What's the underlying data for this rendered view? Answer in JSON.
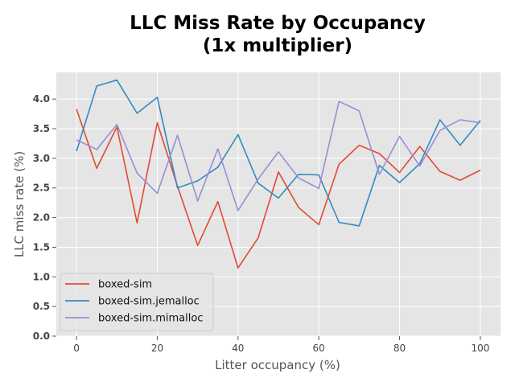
{
  "chart_data": {
    "type": "line",
    "title_line1": "LLC Miss Rate by Occupancy",
    "title_line2": "(1x multiplier)",
    "xlabel": "Litter occupancy (%)",
    "ylabel": "LLC miss rate (%)",
    "xlim": [
      -5,
      105
    ],
    "ylim": [
      0,
      4.45
    ],
    "xticks": [
      0,
      20,
      40,
      60,
      80,
      100
    ],
    "yticks": [
      0.0,
      0.5,
      1.0,
      1.5,
      2.0,
      2.5,
      3.0,
      3.5,
      4.0
    ],
    "ytick_labels": [
      "0.0",
      "0.5",
      "1.0",
      "1.5",
      "2.0",
      "2.5",
      "3.0",
      "3.5",
      "4.0"
    ],
    "grid": true,
    "legend_position": "lower-left",
    "x": [
      0,
      5,
      10,
      15,
      20,
      25,
      30,
      35,
      40,
      45,
      50,
      55,
      60,
      65,
      70,
      75,
      80,
      85,
      90,
      95,
      100
    ],
    "series": [
      {
        "name": "boxed-sim",
        "color": "#E24A33",
        "values": [
          3.83,
          2.83,
          3.53,
          1.91,
          3.6,
          2.53,
          1.53,
          2.27,
          1.15,
          1.66,
          2.77,
          2.17,
          1.88,
          2.9,
          3.22,
          3.08,
          2.76,
          3.2,
          2.78,
          2.63,
          2.8
        ]
      },
      {
        "name": "boxed-sim.jemalloc",
        "color": "#348ABD",
        "values": [
          3.12,
          4.22,
          4.32,
          3.76,
          4.03,
          2.5,
          2.62,
          2.85,
          3.4,
          2.58,
          2.33,
          2.73,
          2.72,
          1.92,
          1.86,
          2.88,
          2.59,
          2.91,
          3.65,
          3.22,
          3.64
        ]
      },
      {
        "name": "boxed-sim.mimalloc",
        "color": "#988ED5",
        "values": [
          3.31,
          3.15,
          3.57,
          2.75,
          2.41,
          3.39,
          2.28,
          3.16,
          2.12,
          2.65,
          3.11,
          2.67,
          2.49,
          3.96,
          3.8,
          2.73,
          3.37,
          2.87,
          3.47,
          3.65,
          3.6
        ]
      }
    ]
  }
}
